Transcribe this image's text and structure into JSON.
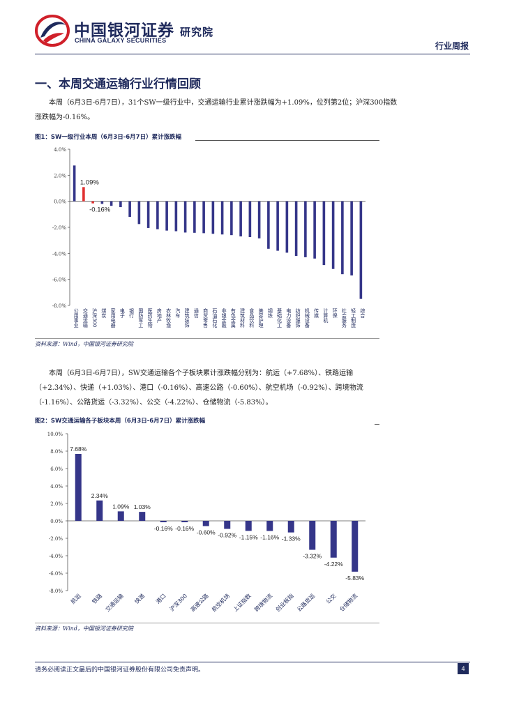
{
  "header": {
    "company_cn": "中国银河证券",
    "institute": "研究院",
    "company_en": "CHINA GALAXY SECURITIES",
    "report_type": "行业周报"
  },
  "section_title": "一、本周交通运输行业行情回顾",
  "paragraph1": "本周（6月3日-6月7日），31个SW一级行业中，交通运输行业累计涨跌幅为+1.09%，位列第2位；沪深300指数涨跌幅为-0.16%。",
  "paragraph2": "本周（6月3日-6月7日），SW交通运输各个子板块累计涨跌幅分别为：航运（+7.68%）、铁路运输（+2.34%）、快递（+1.03%）、港口（-0.16%）、高速公路（-0.60%）、航空机场（-0.92%）、跨境物流（-1.16%）、公路货运（-3.32%）、公交（-4.22%）、仓储物流（-5.83%）。",
  "figure1": {
    "title": "图1：SW一级行业本周（6月3日-6月7日）累计涨跌幅",
    "source": "资料来源：Wind，中国银河证券研究院"
  },
  "figure2": {
    "title": "图2：SW交通运输各子板块本周（6月3日-6月7日）累计涨跌幅",
    "source": "资料来源：Wind，中国银河证券研究院"
  },
  "chart_data": [
    {
      "type": "bar",
      "categories": [
        "公用事业",
        "交通运输",
        "沪深300",
        "煤炭",
        "家用电器",
        "电子",
        "银行",
        "国防军工",
        "医药生物",
        "房地产",
        "农林牧渔",
        "汽车",
        "建筑装饰",
        "通信",
        "商贸零售",
        "石油石化",
        "非银金融",
        "有色金属",
        "建筑材料",
        "食品饮料",
        "美容护理",
        "钢铁",
        "基础化工",
        "电力设备",
        "纺织服饰",
        "机械设备",
        "传媒",
        "计算机",
        "环保",
        "社会服务",
        "轻工制造",
        "综合"
      ],
      "values": [
        2.75,
        1.09,
        -0.16,
        -0.2,
        -0.35,
        -0.45,
        -1.2,
        -1.75,
        -2.05,
        -2.15,
        -2.25,
        -2.3,
        -2.4,
        -2.42,
        -2.45,
        -2.5,
        -2.55,
        -2.6,
        -2.7,
        -2.75,
        -2.85,
        -3.65,
        -3.8,
        -3.95,
        -4.2,
        -4.3,
        -4.4,
        -4.9,
        -5.2,
        -5.6,
        -5.7,
        -7.5
      ],
      "highlight_colors": {
        "交通运输": "#e03030",
        "沪深300": "#e03030"
      },
      "data_labels": [
        {
          "category": "交通运输",
          "text": "1.09%"
        },
        {
          "category": "沪深300",
          "text": "-0.16%"
        }
      ],
      "yticks": [
        "4.0%",
        "2.0%",
        "0.0%",
        "-2.0%",
        "-4.0%",
        "-6.0%",
        "-8.0%"
      ],
      "ylim": [
        -8,
        4
      ],
      "bar_color": "#353689"
    },
    {
      "type": "bar",
      "categories": [
        "航运",
        "铁路",
        "交通运输",
        "快递",
        "港口",
        "沪深300",
        "高速公路",
        "航空机场",
        "上证指数",
        "跨境物流",
        "创业板指",
        "公路货运",
        "公交",
        "仓储物流"
      ],
      "values": [
        7.68,
        2.34,
        1.09,
        1.03,
        -0.16,
        -0.16,
        -0.6,
        -0.92,
        -1.15,
        -1.16,
        -1.33,
        -3.32,
        -4.22,
        -5.83
      ],
      "labels": [
        "7.68%",
        "2.34%",
        "1.09%",
        "1.03%",
        "-0.16%",
        "-0.16%",
        "-0.60%",
        "-0.92%",
        "-1.15%",
        "-1.16%",
        "-1.33%",
        "-3.32%",
        "-4.22%",
        "-5.83%"
      ],
      "yticks": [
        "10.0%",
        "8.0%",
        "6.0%",
        "4.0%",
        "2.0%",
        "0.0%",
        "-2.0%",
        "-4.0%",
        "-6.0%",
        "-8.0%"
      ],
      "ylim": [
        -8,
        10
      ],
      "bar_color": "#353689"
    }
  ],
  "footer": {
    "disclaimer": "请务必阅读正文最后的中国银河证券股份有限公司免责声明。",
    "page_number": "4"
  }
}
